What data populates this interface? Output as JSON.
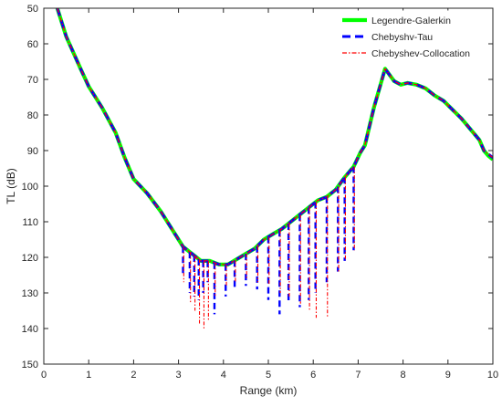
{
  "chart_data": {
    "type": "line",
    "xlabel": "Range (km)",
    "ylabel": "TL (dB)",
    "xlim": [
      0,
      10
    ],
    "ylim": [
      150,
      50
    ],
    "y_axis_reversed": true,
    "xticks": [
      0,
      1,
      2,
      3,
      4,
      5,
      6,
      7,
      8,
      9,
      10
    ],
    "yticks": [
      50,
      60,
      70,
      80,
      90,
      100,
      110,
      120,
      130,
      140,
      150
    ],
    "grid": false,
    "legend_position": "top-right",
    "series": [
      {
        "name": "Legendre-Galerkin",
        "color": "#00ff00",
        "style": "solid-thick",
        "x": [
          0.3,
          0.5,
          0.8,
          1.0,
          1.3,
          1.6,
          1.8,
          2.0,
          2.3,
          2.6,
          2.9,
          3.1,
          3.3,
          3.5,
          3.7,
          3.9,
          4.1,
          4.3,
          4.5,
          4.7,
          4.9,
          5.1,
          5.3,
          5.5,
          5.7,
          5.9,
          6.1,
          6.3,
          6.5,
          6.7,
          6.9,
          7.05,
          7.15,
          7.35,
          7.6,
          7.8,
          7.95,
          8.1,
          8.3,
          8.5,
          8.7,
          8.9,
          9.1,
          9.3,
          9.5,
          9.7,
          9.8,
          9.9,
          10.0
        ],
        "y": [
          50,
          58,
          66.5,
          72,
          78,
          85,
          92,
          98,
          102,
          107,
          113,
          117,
          119,
          121,
          121,
          122,
          122,
          120.5,
          119,
          117.5,
          115,
          113.5,
          112,
          110,
          108,
          106,
          104,
          103,
          101,
          97.5,
          94.5,
          90.5,
          88.5,
          78,
          67,
          70.5,
          71.5,
          71,
          71.5,
          72.5,
          74.5,
          76,
          78.5,
          81,
          84,
          87,
          90,
          91.5,
          92.5
        ]
      },
      {
        "name": "Chebyshv-Tau",
        "color": "#0000ff",
        "style": "dashed-thick",
        "x": [
          0.3,
          0.5,
          0.8,
          1.0,
          1.3,
          1.6,
          1.8,
          2.0,
          2.3,
          2.6,
          2.9,
          3.1,
          3.3,
          3.5,
          3.7,
          3.9,
          4.1,
          4.3,
          4.5,
          4.7,
          4.9,
          5.1,
          5.3,
          5.5,
          5.7,
          5.9,
          6.1,
          6.3,
          6.5,
          6.7,
          6.9,
          7.05,
          7.15,
          7.35,
          7.6,
          7.8,
          7.95,
          8.1,
          8.3,
          8.5,
          8.7,
          8.9,
          9.1,
          9.3,
          9.5,
          9.7,
          9.8,
          9.9,
          10.0
        ],
        "y": [
          50,
          58,
          66.5,
          72,
          78,
          85,
          92,
          98,
          102,
          107,
          113,
          117,
          119,
          121,
          121,
          122,
          122,
          120.5,
          119,
          117.5,
          115,
          113.5,
          112,
          110,
          108,
          106,
          104,
          103,
          101,
          97.5,
          94.5,
          90.5,
          88.5,
          78,
          67,
          70.5,
          71.5,
          71,
          71.5,
          72.5,
          74.5,
          76,
          78.5,
          81,
          84,
          87,
          90,
          91,
          92
        ]
      },
      {
        "name": "Chebyshev-Collocation",
        "color": "#ff0000",
        "style": "dashdot-thin",
        "x": [
          0.3,
          0.5,
          0.8,
          1.0,
          1.3,
          1.6,
          1.8,
          2.0,
          2.3,
          2.6,
          2.9,
          3.1,
          3.3,
          3.5,
          3.7,
          3.9,
          4.1,
          4.3,
          4.5,
          4.7,
          4.9,
          5.1,
          5.3,
          5.5,
          5.7,
          5.9,
          6.1,
          6.3,
          6.5,
          6.7,
          6.9,
          7.05,
          7.15,
          7.35,
          7.6,
          7.8,
          7.95,
          8.1,
          8.3,
          8.5,
          8.7,
          8.9,
          9.1,
          9.3,
          9.5,
          9.7,
          9.8,
          9.9,
          10.0
        ],
        "y": [
          50,
          58,
          66.5,
          72,
          78,
          85,
          92,
          98,
          102,
          107,
          113,
          117,
          119,
          121,
          121,
          122,
          122,
          120.5,
          119,
          117.5,
          115,
          113.5,
          112,
          110,
          108,
          106,
          104,
          103,
          101,
          97.5,
          94.5,
          90.5,
          88.5,
          78,
          67,
          70.5,
          71.5,
          71,
          71.5,
          72.5,
          74.5,
          76,
          78.5,
          81,
          84,
          87,
          90,
          91,
          92
        ]
      }
    ],
    "interference_dips": {
      "x": [
        3.1,
        3.25,
        3.35,
        3.45,
        3.55,
        3.65,
        3.8,
        4.05,
        4.25,
        4.5,
        4.75,
        5.0,
        5.25,
        5.45,
        5.7,
        5.9,
        6.05,
        6.3,
        6.55,
        6.7,
        6.9
      ],
      "blue_y": [
        125,
        130,
        131,
        132,
        130,
        127,
        136,
        131,
        129,
        128,
        129,
        132,
        136,
        133,
        134,
        132,
        130,
        127,
        124,
        121,
        118
      ],
      "red_y": [
        127,
        133,
        135,
        139,
        140,
        138,
        131,
        128,
        127,
        126,
        127,
        128,
        130,
        131,
        133,
        135,
        137,
        137,
        124,
        121,
        118
      ]
    }
  }
}
